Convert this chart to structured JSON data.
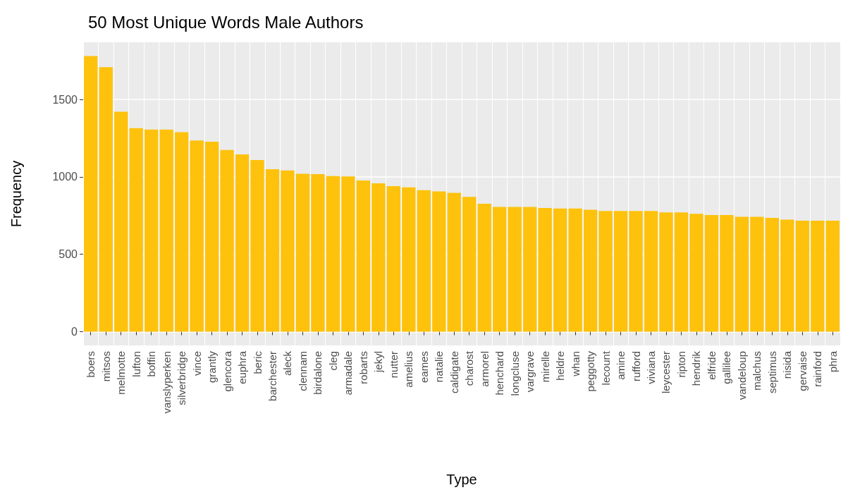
{
  "chart_data": {
    "type": "bar",
    "title": "50 Most Unique Words Male Authors",
    "xlabel": "Type",
    "ylabel": "Frequency",
    "categories": [
      "boers",
      "mitsos",
      "melmotte",
      "lufton",
      "boffin",
      "vanslyperken",
      "silverbridge",
      "vince",
      "grantly",
      "glencora",
      "euphra",
      "beric",
      "barchester",
      "aleck",
      "clennam",
      "birdalone",
      "cleg",
      "armadale",
      "robarts",
      "jekyl",
      "nutter",
      "amelius",
      "eames",
      "natalie",
      "caldigate",
      "charost",
      "armorel",
      "henchard",
      "longcluse",
      "vargrave",
      "mirelle",
      "heldre",
      "whan",
      "peggotty",
      "lecount",
      "amine",
      "rufford",
      "viviana",
      "leycester",
      "ripton",
      "hendrik",
      "elfride",
      "gallilee",
      "vandeloup",
      "malchus",
      "septimus",
      "nisida",
      "gervaise",
      "rainford",
      "phra"
    ],
    "values": [
      1780,
      1708,
      1421,
      1315,
      1305,
      1305,
      1288,
      1235,
      1227,
      1174,
      1145,
      1109,
      1049,
      1041,
      1020,
      1018,
      1005,
      1003,
      977,
      958,
      940,
      932,
      914,
      906,
      897,
      871,
      826,
      806,
      806,
      806,
      799,
      795,
      795,
      788,
      780,
      780,
      780,
      780,
      770,
      770,
      761,
      753,
      753,
      742,
      742,
      735,
      724,
      717,
      717,
      717
    ],
    "color": "#fec20c",
    "ylim": [
      -89,
      1869
    ],
    "yticks": [
      0,
      500,
      1000,
      1500
    ],
    "grid": true
  }
}
